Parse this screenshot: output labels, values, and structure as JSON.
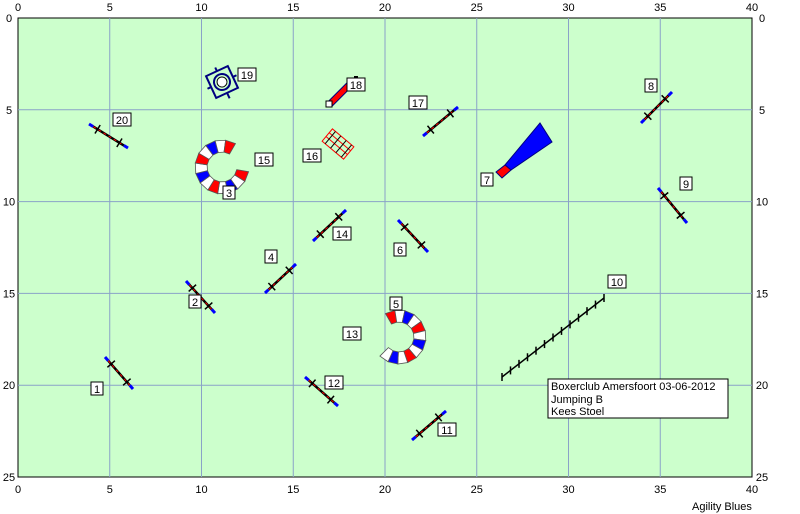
{
  "axes": {
    "x_ticks": [
      "0",
      "5",
      "10",
      "15",
      "20",
      "25",
      "30",
      "35",
      "40"
    ],
    "y_ticks": [
      "0",
      "5",
      "10",
      "15",
      "20",
      "25"
    ],
    "x_range": [
      0,
      40
    ],
    "y_range": [
      0,
      25
    ]
  },
  "colors": {
    "field": "#ccffcc",
    "grid": "#8aa2c8",
    "bar_blue": "#0000ff",
    "bar_red": "#ff0000",
    "obstacle_dark": "#000080"
  },
  "course_info": {
    "title": "Boxerclub Amersfoort 03-06-2012",
    "class": "Jumping B",
    "judge": "Kees Stoel"
  },
  "footer": "Agility Blues",
  "obstacles": [
    {
      "number": "1",
      "type": "jump"
    },
    {
      "number": "2",
      "type": "jump"
    },
    {
      "number": "3",
      "type": "tunnel"
    },
    {
      "number": "4",
      "type": "jump"
    },
    {
      "number": "5",
      "type": "tunnel"
    },
    {
      "number": "6",
      "type": "jump"
    },
    {
      "number": "7",
      "type": "chute"
    },
    {
      "number": "8",
      "type": "jump"
    },
    {
      "number": "9",
      "type": "jump"
    },
    {
      "number": "10",
      "type": "weave-poles"
    },
    {
      "number": "11",
      "type": "jump"
    },
    {
      "number": "12",
      "type": "jump"
    },
    {
      "number": "13",
      "type": "tunnel"
    },
    {
      "number": "14",
      "type": "jump"
    },
    {
      "number": "15",
      "type": "tunnel"
    },
    {
      "number": "16",
      "type": "long-jump"
    },
    {
      "number": "17",
      "type": "jump"
    },
    {
      "number": "18",
      "type": "wall"
    },
    {
      "number": "19",
      "type": "tyre"
    },
    {
      "number": "20",
      "type": "jump"
    }
  ]
}
